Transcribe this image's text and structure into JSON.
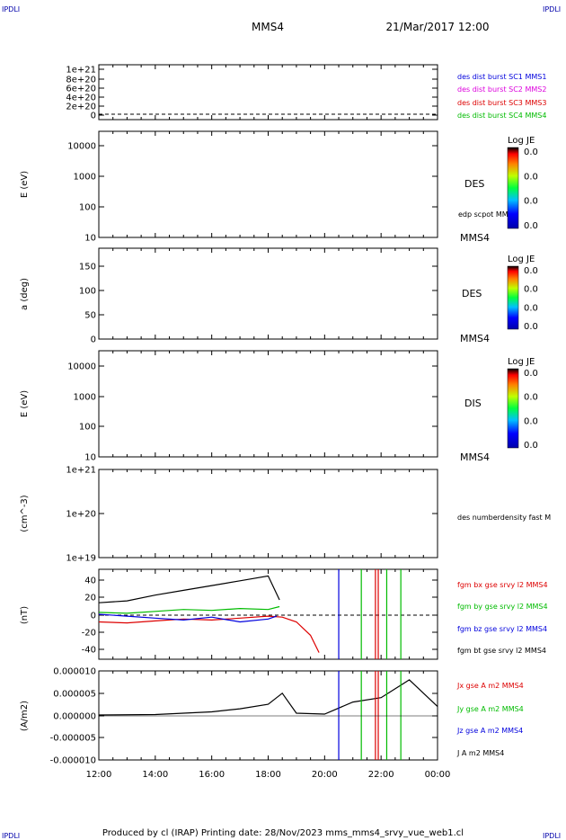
{
  "corner_labels": {
    "tl": "IPDLI",
    "tr": "IPDLI",
    "bl": "IPDLI",
    "br": "IPDLI"
  },
  "header": {
    "spacecraft": "MMS4",
    "datetime": "21/Mar/2017 12:00"
  },
  "footer": {
    "text": "Produced by cl (IRAP)   Printing date: 28/Nov/2023   mms_mms4_srvy_vue_web1.cl"
  },
  "x_ticks": [
    "12:00",
    "14:00",
    "16:00",
    "18:00",
    "20:00",
    "22:00",
    "00:00"
  ],
  "chart_data": [
    {
      "type": "line",
      "panel": "burst",
      "ylabel": "",
      "ylim": [
        0,
        1.2e+21
      ],
      "y_ticks": [
        "1e+21",
        "8e+20",
        "6e+20",
        "4e+20",
        "2e+20",
        "0"
      ],
      "legend": [
        {
          "name": "des dist burst SC1 MMS1",
          "color": "#0000dd"
        },
        {
          "name": "des dist burst SC2 MMS2",
          "color": "#dd00dd"
        },
        {
          "name": "des dist burst SC3 MMS3",
          "color": "#dd0000"
        },
        {
          "name": "des dist burst SC4 MMS4",
          "color": "#00bb00"
        }
      ],
      "series": [
        {
          "name": "des dist burst SC1 MMS1",
          "values": [
            0
          ]
        }
      ]
    },
    {
      "type": "heatmap",
      "panel": "des-energy",
      "ylabel": "E (eV)",
      "scale": "log",
      "y_ticks": [
        "10000",
        "1000",
        "100",
        "10"
      ],
      "side_labels": [
        "DES",
        "edp scpot MMS4",
        "MMS4"
      ],
      "colorbar": {
        "title": "Log JE",
        "ticks": [
          "0.0",
          "0.0",
          "0.0",
          "0.0"
        ]
      }
    },
    {
      "type": "heatmap",
      "panel": "des-pitch",
      "ylabel": "a (deg)",
      "ylim": [
        0,
        180
      ],
      "y_ticks": [
        "150",
        "100",
        "50",
        "0"
      ],
      "side_labels": [
        "DES",
        "MMS4"
      ],
      "colorbar": {
        "title": "Log JE",
        "ticks": [
          "0.0",
          "0.0",
          "0.0",
          "0.0"
        ]
      }
    },
    {
      "type": "heatmap",
      "panel": "dis-energy",
      "ylabel": "E (eV)",
      "scale": "log",
      "y_ticks": [
        "10000",
        "1000",
        "100",
        "10"
      ],
      "side_labels": [
        "DIS",
        "MMS4"
      ],
      "colorbar": {
        "title": "Log JE",
        "ticks": [
          "0.0",
          "0.0",
          "0.0",
          "0.0"
        ]
      }
    },
    {
      "type": "line",
      "panel": "density",
      "ylabel": "(cm^-3)",
      "scale": "log",
      "y_ticks": [
        "1e+21",
        "1e+20",
        "1e+19"
      ],
      "legend": [
        {
          "name": "des numberdensity fast M",
          "color": "#000000"
        }
      ],
      "series": []
    },
    {
      "type": "line",
      "panel": "fgm",
      "ylabel": "(nT)",
      "ylim": [
        -47,
        47
      ],
      "y_ticks": [
        "40",
        "20",
        "0",
        "-20",
        "-40"
      ],
      "legend": [
        {
          "name": "fgm bx gse srvy l2 MMS4",
          "color": "#dd0000"
        },
        {
          "name": "fgm by gse srvy l2 MMS4",
          "color": "#00bb00"
        },
        {
          "name": "fgm bz gse srvy l2 MMS4",
          "color": "#0000dd"
        },
        {
          "name": "fgm bt gse srvy l2 MMS4",
          "color": "#000000"
        }
      ],
      "series": [
        {
          "name": "fgm bx gse srvy l2 MMS4",
          "x": [
            12.0,
            13.0,
            14.0,
            15.0,
            16.0,
            17.0,
            18.0,
            18.5,
            19.0,
            19.5,
            19.8
          ],
          "values": [
            -8,
            -9,
            -7,
            -5,
            -6,
            -4,
            -2,
            -3,
            -8,
            -22,
            -40
          ]
        },
        {
          "name": "fgm by gse srvy l2 MMS4",
          "x": [
            12.0,
            13.0,
            14.0,
            15.0,
            16.0,
            17.0,
            18.0,
            18.4
          ],
          "values": [
            2,
            1,
            3,
            5,
            4,
            6,
            5,
            8
          ]
        },
        {
          "name": "fgm bz gse srvy l2 MMS4",
          "x": [
            12.0,
            13.0,
            14.0,
            15.0,
            16.0,
            17.0,
            18.0,
            18.3
          ],
          "values": [
            0,
            -2,
            -4,
            -6,
            -3,
            -8,
            -5,
            -2
          ]
        },
        {
          "name": "fgm bt gse srvy l2 MMS4",
          "x": [
            12.0,
            13.0,
            14.0,
            15.0,
            16.0,
            17.0,
            18.0,
            18.4
          ],
          "values": [
            12,
            14,
            20,
            25,
            30,
            35,
            40,
            15
          ]
        }
      ]
    },
    {
      "type": "line",
      "panel": "current",
      "ylabel": "(A/m2)",
      "ylim": [
        -1e-05,
        1e-05
      ],
      "y_ticks": [
        "0.000010",
        "0.000005",
        "0.000000",
        "-0.000005",
        "-0.000010"
      ],
      "legend": [
        {
          "name": "Jx gse A m2 MMS4",
          "color": "#dd0000"
        },
        {
          "name": "Jy gse A m2 MMS4",
          "color": "#00bb00"
        },
        {
          "name": "Jz gse A m2 MMS4",
          "color": "#0000dd"
        },
        {
          "name": "J A m2 MMS4",
          "color": "#000000"
        }
      ],
      "series": [
        {
          "name": "J A m2 MMS4",
          "x": [
            12.0,
            14.0,
            16.0,
            17.0,
            18.0,
            18.5,
            19.0,
            20.0,
            21.0,
            22.0,
            23.0,
            24.0
          ],
          "values": [
            1e-07,
            2e-07,
            8e-07,
            1.5e-06,
            2.5e-06,
            5e-06,
            5e-07,
            3e-07,
            3e-06,
            4e-06,
            8e-06,
            2e-06
          ]
        }
      ]
    }
  ]
}
